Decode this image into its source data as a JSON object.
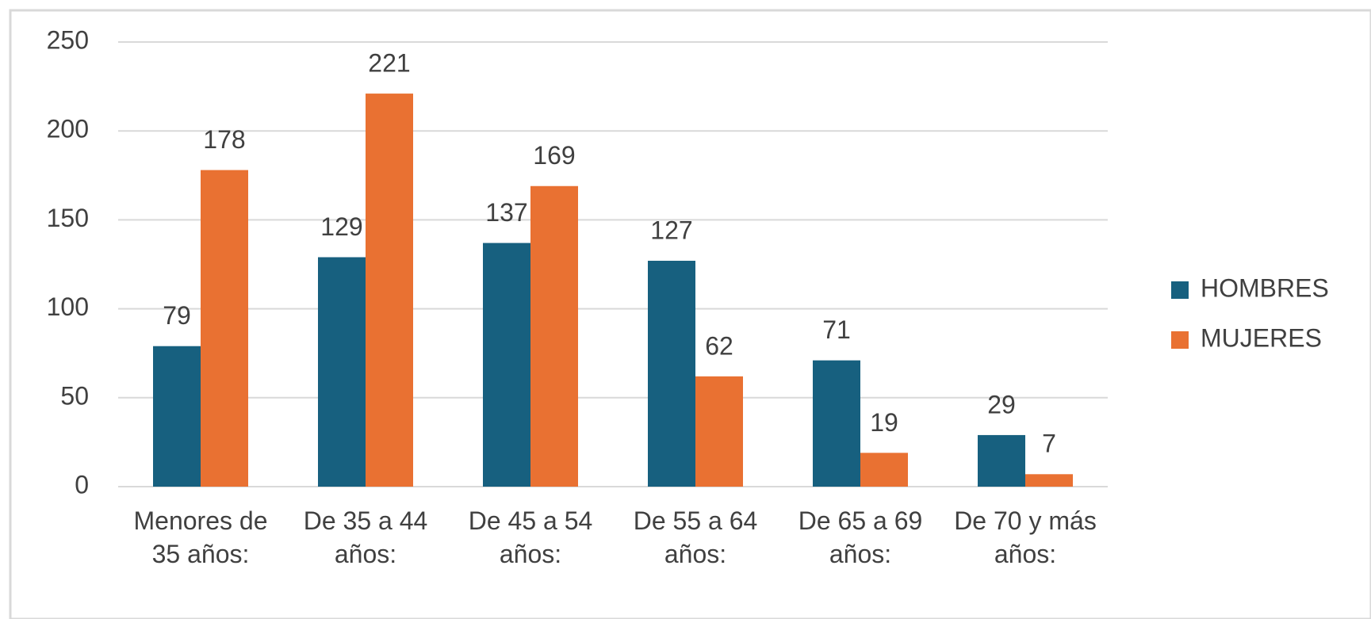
{
  "chart_data": {
    "type": "bar",
    "categories": [
      "Menores de 35 años:",
      "De 35 a 44 años:",
      "De 45 a 54 años:",
      "De 55 a 64 años:",
      "De 65 a 69 años:",
      "De 70 y más años:"
    ],
    "series": [
      {
        "name": "HOMBRES",
        "color": "#17607f",
        "values": [
          79,
          129,
          137,
          127,
          71,
          29
        ]
      },
      {
        "name": "MUJERES",
        "color": "#e97132",
        "values": [
          178,
          221,
          169,
          62,
          19,
          7
        ]
      }
    ],
    "ylim": [
      0,
      250
    ],
    "yticks": [
      0,
      50,
      100,
      150,
      200,
      250
    ],
    "grid": true,
    "legend": "right"
  }
}
